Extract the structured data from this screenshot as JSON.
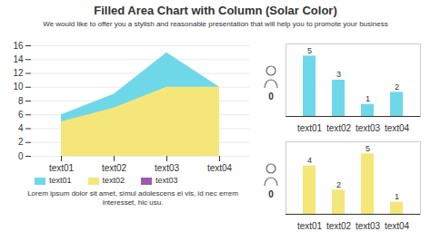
{
  "chart_data": [
    {
      "type": "area",
      "title": "Filled Area Chart with Column (Solar Color)",
      "subtitle": "We would like to offer you a stylish and reasonable presentation that will help you to promote your business",
      "categories": [
        "text01",
        "text02",
        "text03",
        "text04"
      ],
      "series": [
        {
          "name": "text01",
          "color": "#6ed8e8",
          "values": [
            6,
            9,
            15,
            10
          ]
        },
        {
          "name": "text02",
          "color": "#f5e67a",
          "values": [
            5,
            7,
            10,
            10
          ]
        },
        {
          "name": "text03",
          "color": "#9b59b6",
          "values": [
            null,
            null,
            null,
            null
          ]
        }
      ],
      "ylim": [
        0,
        16
      ],
      "yticks": [
        0,
        2,
        4,
        6,
        8,
        10,
        12,
        14,
        16
      ],
      "grid": true,
      "stacked": false,
      "legend": "bottom",
      "annotations": [
        "Lorem ipsum dolor sit amet, simul adolescens ei vis, id nec errem\ninteresset, hic usu."
      ]
    },
    {
      "type": "bar",
      "categories": [
        "text01",
        "text02",
        "text03",
        "text04"
      ],
      "values": [
        5,
        3,
        1,
        2
      ],
      "color": "#6ed8e8",
      "ylim": [
        0,
        6
      ],
      "data_labels": true,
      "tick_labels": "x",
      "annotations": [
        "0"
      ]
    },
    {
      "type": "bar",
      "categories": [
        "text01",
        "text02",
        "text03",
        "text04"
      ],
      "values": [
        4,
        2,
        5,
        1
      ],
      "color": "#f5e67a",
      "ylim": [
        0,
        6
      ],
      "data_labels": true,
      "tick_labels": "x",
      "annotations": [
        "0"
      ]
    }
  ]
}
